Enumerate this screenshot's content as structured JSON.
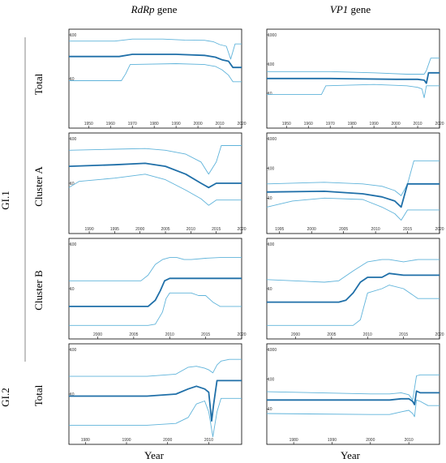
{
  "figure": {
    "column_titles": [
      {
        "italic": "RdRp",
        "rest": " gene"
      },
      {
        "italic": "VP1",
        "rest": " gene"
      }
    ],
    "group_labels": [
      "GI.1",
      "GI.2"
    ],
    "row_labels": [
      "Total",
      "Cluster A",
      "Cluster B",
      "Total"
    ],
    "xlabel": "Year"
  },
  "colors": {
    "median": "#1f6fa8",
    "hpd": "#5fb3da",
    "axis": "#000000",
    "text": "#000000"
  },
  "chart_data": [
    {
      "type": "line",
      "panel": "RdRp-GI.1-Total",
      "log_y": true,
      "xlim": [
        1941,
        2020
      ],
      "ylim": [
        1,
        100
      ],
      "x_ticks": [
        1950,
        1960,
        1970,
        1980,
        1990,
        2000,
        2010,
        2020
      ],
      "y_ticks": [
        {
          "v": 10,
          "label": "10"
        },
        {
          "v": 100,
          "label": "100"
        }
      ],
      "series": [
        {
          "role": "upper",
          "x": [
            1941,
            1962,
            1970,
            1984,
            1994,
            2003,
            2007,
            2010,
            2013,
            2015,
            2017,
            2020
          ],
          "y": [
            72,
            72,
            80,
            80,
            76,
            75,
            70,
            60,
            55,
            28,
            62,
            62
          ]
        },
        {
          "role": "median",
          "x": [
            1941,
            1964,
            1970,
            1990,
            2003,
            2008,
            2011,
            2014,
            2016,
            2020
          ],
          "y": [
            32,
            32,
            36,
            36,
            34,
            31,
            27,
            25,
            18,
            18
          ]
        },
        {
          "role": "lower",
          "x": [
            1941,
            1965,
            1967,
            1969,
            1990,
            2003,
            2008,
            2011,
            2014,
            2016,
            2020
          ],
          "y": [
            9,
            9,
            13,
            21,
            22,
            21,
            19,
            16,
            12,
            8.5,
            8.5
          ]
        }
      ]
    },
    {
      "type": "line",
      "panel": "VP1-GI.1-Total",
      "log_y": true,
      "xlim": [
        1941,
        2020
      ],
      "ylim": [
        1,
        1000
      ],
      "x_ticks": [
        1950,
        1960,
        1970,
        1980,
        1990,
        2000,
        2010,
        2020
      ],
      "y_ticks": [
        {
          "v": 10,
          "label": "10"
        },
        {
          "v": 100,
          "label": "100"
        },
        {
          "v": 1000,
          "label": "1000"
        }
      ],
      "series": [
        {
          "role": "upper",
          "x": [
            1941,
            1970,
            1990,
            2005,
            2010,
            2013,
            2014,
            2016,
            2020
          ],
          "y": [
            55,
            55,
            50,
            45,
            45,
            45,
            60,
            160,
            160
          ]
        },
        {
          "role": "median",
          "x": [
            1941,
            1970,
            2000,
            2010,
            2013,
            2014,
            2015,
            2020
          ],
          "y": [
            32,
            32,
            30,
            30,
            28,
            22,
            50,
            50
          ]
        },
        {
          "role": "lower",
          "x": [
            1941,
            1966,
            1968,
            1990,
            2005,
            2010,
            2012,
            2013,
            2014,
            2015,
            2020
          ],
          "y": [
            9,
            9,
            18,
            20,
            18,
            16,
            14,
            7,
            18,
            18,
            18
          ]
        }
      ]
    },
    {
      "type": "line",
      "panel": "RdRp-GI.1-ClusterA",
      "log_y": true,
      "xlim": [
        1986,
        2020
      ],
      "ylim": [
        1,
        100
      ],
      "x_ticks": [
        1990,
        1995,
        2000,
        2005,
        2010,
        2015,
        2020
      ],
      "y_ticks": [
        {
          "v": 10,
          "label": "10"
        },
        {
          "v": 100,
          "label": "100"
        }
      ],
      "series": [
        {
          "role": "upper",
          "x": [
            1986,
            1995,
            2001,
            2005,
            2009,
            2012,
            2013.5,
            2015,
            2016,
            2020
          ],
          "y": [
            55,
            58,
            60,
            55,
            45,
            30,
            16,
            30,
            70,
            70
          ]
        },
        {
          "role": "median",
          "x": [
            1986,
            1995,
            2001,
            2005,
            2009,
            2012,
            2013.5,
            2015,
            2020
          ],
          "y": [
            24,
            26,
            28,
            24,
            16,
            10,
            8,
            10,
            10
          ]
        },
        {
          "role": "lower",
          "x": [
            1986,
            1988,
            1995,
            2001,
            2005,
            2009,
            2012,
            2013.5,
            2015,
            2020
          ],
          "y": [
            8,
            11,
            13,
            16,
            12,
            7,
            4.5,
            3.2,
            4.2,
            4.2
          ]
        }
      ]
    },
    {
      "type": "line",
      "panel": "VP1-GI.1-ClusterA",
      "log_y": true,
      "xlim": [
        1993,
        2020
      ],
      "ylim": [
        1,
        1000
      ],
      "x_ticks": [
        1995,
        2000,
        2005,
        2010,
        2015,
        2020
      ],
      "y_ticks": [
        {
          "v": 10,
          "label": "10"
        },
        {
          "v": 100,
          "label": "100"
        },
        {
          "v": 1000,
          "label": "1000"
        }
      ],
      "series": [
        {
          "role": "upper",
          "x": [
            1993,
            2002,
            2008,
            2011,
            2013,
            2014,
            2015,
            2016,
            2020
          ],
          "y": [
            30,
            34,
            30,
            25,
            18,
            12,
            30,
            180,
            180
          ]
        },
        {
          "role": "median",
          "x": [
            1993,
            2002,
            2008,
            2011,
            2013,
            2014,
            2015,
            2020
          ],
          "y": [
            16,
            17,
            14,
            11,
            8,
            5,
            30,
            30
          ]
        },
        {
          "role": "lower",
          "x": [
            1993,
            1997,
            2002,
            2008,
            2011,
            2013,
            2014,
            2015,
            2020
          ],
          "y": [
            5,
            8,
            10,
            9,
            5,
            3,
            1.8,
            4,
            4
          ]
        }
      ]
    },
    {
      "type": "line",
      "panel": "RdRp-GI.1-ClusterB",
      "log_y": true,
      "xlim": [
        1996,
        2020
      ],
      "ylim": [
        1,
        100
      ],
      "x_ticks": [
        2000,
        2005,
        2010,
        2015,
        2020
      ],
      "y_ticks": [
        {
          "v": 10,
          "label": "10"
        },
        {
          "v": 100,
          "label": "100"
        }
      ],
      "series": [
        {
          "role": "upper",
          "x": [
            1996,
            2006,
            2007,
            2008,
            2009,
            2010,
            2011,
            2012,
            2013,
            2015,
            2017,
            2020
          ],
          "y": [
            15,
            15,
            20,
            35,
            45,
            50,
            50,
            45,
            45,
            48,
            50,
            50
          ]
        },
        {
          "role": "median",
          "x": [
            1996,
            2007,
            2008,
            2008.7,
            2009.3,
            2010,
            2020
          ],
          "y": [
            4,
            4,
            5.5,
            9,
            15,
            17,
            17
          ]
        },
        {
          "role": "lower",
          "x": [
            1996,
            2007,
            2008,
            2009,
            2009.5,
            2010,
            2013,
            2014,
            2015,
            2016,
            2017,
            2020
          ],
          "y": [
            1.5,
            1.5,
            1.6,
            3,
            6,
            8,
            8,
            7,
            7,
            5,
            4,
            4
          ]
        }
      ]
    },
    {
      "type": "line",
      "panel": "VP1-GI.1-ClusterB",
      "log_y": true,
      "xlim": [
        1996,
        2020
      ],
      "ylim": [
        1,
        100
      ],
      "x_ticks": [
        2000,
        2005,
        2010,
        2015,
        2020
      ],
      "y_ticks": [
        {
          "v": 10,
          "label": "10"
        },
        {
          "v": 100,
          "label": "100"
        }
      ],
      "series": [
        {
          "role": "upper",
          "x": [
            1996,
            2004,
            2006,
            2008,
            2010,
            2012,
            2013,
            2015,
            2017,
            2020
          ],
          "y": [
            16,
            14,
            15,
            25,
            40,
            45,
            45,
            40,
            45,
            45
          ]
        },
        {
          "role": "median",
          "x": [
            1996,
            2006,
            2007,
            2008,
            2009,
            2010,
            2012,
            2013,
            2015,
            2017,
            2020
          ],
          "y": [
            5,
            5,
            5.5,
            8,
            14,
            18,
            18,
            22,
            20,
            20,
            20
          ]
        },
        {
          "role": "lower",
          "x": [
            1996,
            2008,
            2009,
            2009.5,
            2010,
            2012,
            2013,
            2015,
            2017,
            2020
          ],
          "y": [
            1.5,
            1.5,
            2,
            4,
            8,
            10,
            12,
            10,
            6,
            6
          ]
        }
      ]
    },
    {
      "type": "line",
      "panel": "RdRp-GI.2-Total",
      "log_y": true,
      "xlim": [
        1976,
        2018
      ],
      "ylim": [
        1,
        100
      ],
      "x_ticks": [
        1980,
        1990,
        2000,
        2010
      ],
      "y_ticks": [
        {
          "v": 10,
          "label": "10"
        },
        {
          "v": 100,
          "label": "100"
        }
      ],
      "series": [
        {
          "role": "upper",
          "x": [
            1976,
            1995,
            2002,
            2005,
            2007,
            2009,
            2010,
            2011,
            2012,
            2013,
            2015,
            2018
          ],
          "y": [
            25,
            25,
            28,
            40,
            42,
            38,
            35,
            30,
            45,
            55,
            60,
            60
          ]
        },
        {
          "role": "median",
          "x": [
            1976,
            1995,
            2002,
            2005,
            2007,
            2009,
            2010,
            2010.7,
            2011.2,
            2012,
            2018
          ],
          "y": [
            9,
            9,
            10,
            13,
            15,
            13,
            11,
            2.5,
            6,
            20,
            20
          ]
        },
        {
          "role": "lower",
          "x": [
            1976,
            1995,
            2002,
            2005,
            2007,
            2009,
            2010,
            2011,
            2012,
            2013,
            2015,
            2018
          ],
          "y": [
            2,
            2,
            2.2,
            3,
            6,
            7,
            4,
            1.1,
            4,
            8,
            8,
            8
          ]
        }
      ]
    },
    {
      "type": "line",
      "panel": "VP1-GI.2-Total",
      "log_y": true,
      "xlim": [
        1973,
        2018
      ],
      "ylim": [
        1,
        1000
      ],
      "x_ticks": [
        1980,
        1990,
        2000,
        2010
      ],
      "y_ticks": [
        {
          "v": 10,
          "label": "10"
        },
        {
          "v": 100,
          "label": "100"
        },
        {
          "v": 1000,
          "label": "1000"
        }
      ],
      "series": [
        {
          "role": "upper",
          "x": [
            1973,
            2000,
            2005,
            2008,
            2010,
            2011,
            2012,
            2013,
            2018
          ],
          "y": [
            38,
            32,
            32,
            35,
            30,
            20,
            130,
            140,
            140
          ]
        },
        {
          "role": "median",
          "x": [
            1973,
            2005,
            2008,
            2010,
            2011,
            2011.5,
            2012,
            2013,
            2018
          ],
          "y": [
            20,
            20,
            22,
            22,
            18,
            14,
            40,
            35,
            35
          ]
        },
        {
          "role": "lower",
          "x": [
            1973,
            2000,
            2005,
            2008,
            2010,
            2011,
            2011.5,
            2012,
            2013,
            2015,
            2018
          ],
          "y": [
            7,
            6.5,
            6.5,
            8,
            9,
            7,
            5.5,
            20,
            18,
            13,
            13
          ]
        }
      ]
    }
  ]
}
